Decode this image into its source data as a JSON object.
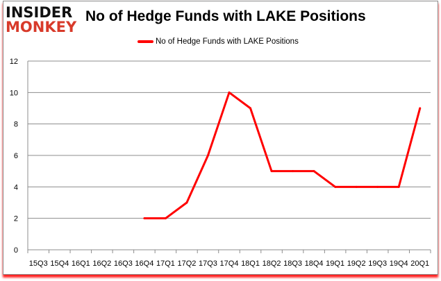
{
  "logo": {
    "line1": "INSIDER",
    "line2": "MONKEY"
  },
  "chart_data": {
    "type": "line",
    "title": "No of Hedge Funds with LAKE Positions",
    "xlabel": "",
    "ylabel": "",
    "categories": [
      "15Q3",
      "15Q4",
      "16Q1",
      "16Q2",
      "16Q3",
      "16Q4",
      "17Q1",
      "17Q2",
      "17Q3",
      "17Q4",
      "18Q1",
      "18Q2",
      "18Q3",
      "18Q4",
      "19Q1",
      "19Q2",
      "19Q3",
      "19Q4",
      "20Q1"
    ],
    "series": [
      {
        "name": "No of Hedge Funds with LAKE Positions",
        "color": "#ff0000",
        "values": [
          null,
          null,
          null,
          null,
          null,
          2,
          2,
          3,
          6,
          10,
          9,
          5,
          5,
          5,
          4,
          4,
          4,
          4,
          9
        ]
      }
    ],
    "ylim": [
      0,
      12
    ],
    "yticks": [
      0,
      2,
      4,
      6,
      8,
      10,
      12
    ],
    "grid": true,
    "legend": "top-center"
  }
}
